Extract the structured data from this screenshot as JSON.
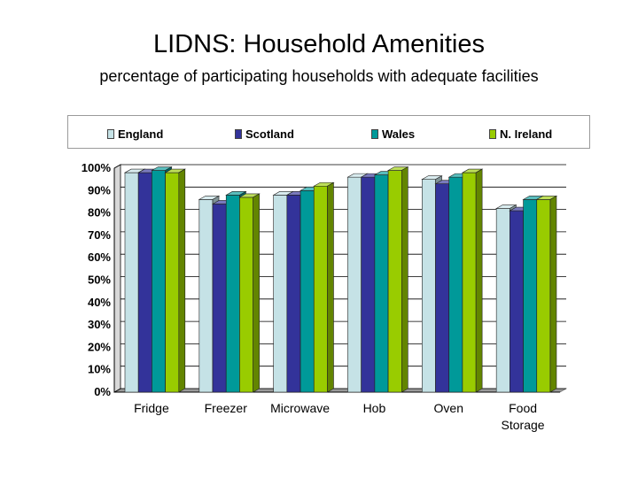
{
  "page": {
    "title": "LIDNS: Household Amenities",
    "subtitle": "percentage of participating households with adequate facilities"
  },
  "colors": {
    "England": "#c5e2e6",
    "Scotland": "#33339a",
    "Wales": "#009999",
    "N. Ireland": "#99cc00"
  },
  "chart_data": {
    "type": "bar",
    "title": "",
    "xlabel": "",
    "ylabel": "",
    "ylim": [
      0,
      100
    ],
    "y_ticks": [
      "0%",
      "10%",
      "20%",
      "30%",
      "40%",
      "50%",
      "60%",
      "70%",
      "80%",
      "90%",
      "100%"
    ],
    "grid": true,
    "legend_position": "top",
    "categories": [
      [
        "Fridge"
      ],
      [
        "Freezer"
      ],
      [
        "Microwave"
      ],
      [
        "Hob"
      ],
      [
        "Oven"
      ],
      [
        "Food",
        "Storage"
      ]
    ],
    "series": [
      {
        "name": "England",
        "values": [
          98,
          86,
          88,
          96,
          95,
          82
        ]
      },
      {
        "name": "Scotland",
        "values": [
          98,
          84,
          88,
          96,
          93,
          81
        ]
      },
      {
        "name": "Wales",
        "values": [
          99,
          88,
          90,
          97,
          96,
          86
        ]
      },
      {
        "name": "N. Ireland",
        "values": [
          98,
          87,
          92,
          99,
          98,
          86
        ]
      }
    ]
  }
}
